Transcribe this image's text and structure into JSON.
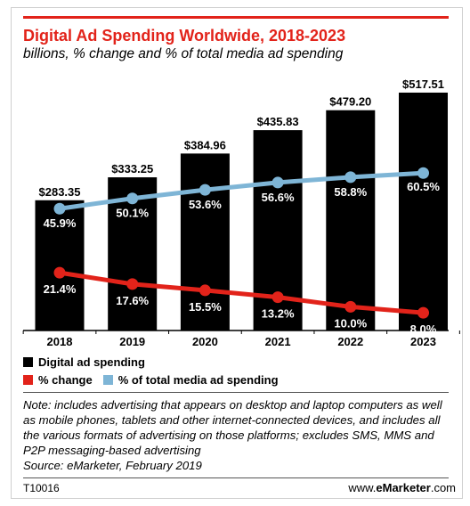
{
  "header": {
    "title": "Digital Ad Spending Worldwide, 2018-2023",
    "subtitle": "billions, % change and % of total media ad spending"
  },
  "legend": {
    "bars": "Digital ad spending",
    "change": "% change",
    "share": "% of total media ad spending"
  },
  "note": "Note: includes advertising that appears on desktop and laptop computers as well as mobile phones, tablets and other internet-connected devices, and includes all the various formats of advertising on those platforms; excludes SMS, MMS and P2P messaging-based advertising\nSource: eMarketer, February 2019",
  "footer": {
    "code": "T10016",
    "site_prefix": "www.",
    "site_brand": "eMarketer",
    "site_suffix": ".com"
  },
  "colors": {
    "bars": "#000000",
    "change": "#e2231a",
    "share": "#7eb5d6",
    "title": "#e2231a"
  },
  "chart_data": {
    "type": "bar",
    "categories": [
      "2018",
      "2019",
      "2020",
      "2021",
      "2022",
      "2023"
    ],
    "series": [
      {
        "name": "Digital ad spending",
        "type": "bar",
        "values": [
          283.35,
          333.25,
          384.96,
          435.83,
          479.2,
          517.51
        ],
        "labels": [
          "$283.35",
          "$333.25",
          "$384.96",
          "$435.83",
          "$479.20",
          "$517.51"
        ]
      },
      {
        "name": "% change",
        "type": "line",
        "values": [
          21.4,
          17.6,
          15.5,
          13.2,
          10.0,
          8.0
        ],
        "labels": [
          "21.4%",
          "17.6%",
          "15.5%",
          "13.2%",
          "10.0%",
          "8.0%"
        ]
      },
      {
        "name": "% of total media ad spending",
        "type": "line",
        "values": [
          45.9,
          50.1,
          53.6,
          56.6,
          58.8,
          60.5
        ],
        "labels": [
          "45.9%",
          "50.1%",
          "53.6%",
          "56.6%",
          "58.8%",
          "60.5%"
        ]
      }
    ],
    "legend_position": "bottom-left",
    "grid": false
  }
}
